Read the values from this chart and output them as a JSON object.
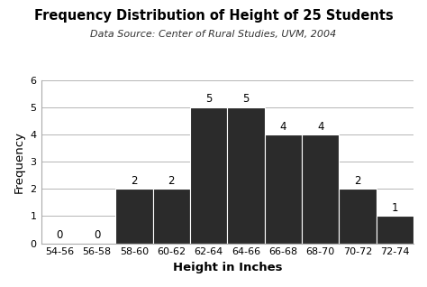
{
  "title": "Frequency Distribution of Height of 25 Students",
  "subtitle": "Data Source: Center of Rural Studies, UVM, 2004",
  "xlabel": "Height in Inches",
  "ylabel": "Frequency",
  "categories": [
    "54-56",
    "56-58",
    "58-60",
    "60-62",
    "62-64",
    "64-66",
    "66-68",
    "68-70",
    "70-72",
    "72-74"
  ],
  "values": [
    0,
    0,
    2,
    2,
    5,
    5,
    4,
    4,
    2,
    1
  ],
  "bar_color": "#2b2b2b",
  "bar_edge_color": "#ffffff",
  "background_color": "#ffffff",
  "plot_bg_color": "#ffffff",
  "grid_color": "#aaaaaa",
  "ylim": [
    0,
    6
  ],
  "yticks": [
    0,
    1,
    2,
    3,
    4,
    5,
    6
  ],
  "title_fontsize": 10.5,
  "subtitle_fontsize": 8,
  "label_fontsize": 9.5,
  "tick_fontsize": 8,
  "value_label_fontsize": 8.5
}
